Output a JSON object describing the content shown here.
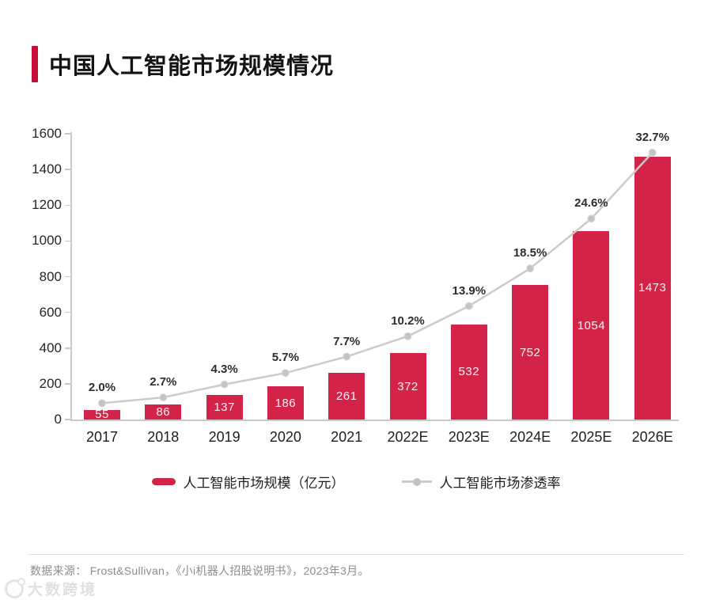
{
  "colors": {
    "accent": "#c60d38",
    "bar": "#d42349",
    "line": "#cbcbcb",
    "marker": "#c4c4c4",
    "marker_edge": "#d9d9d9"
  },
  "chart_data": {
    "type": "bar+line",
    "title": "中国人工智能市场规模情况",
    "categories": [
      "2017",
      "2018",
      "2019",
      "2020",
      "2021",
      "2022E",
      "2023E",
      "2024E",
      "2025E",
      "2026E"
    ],
    "series": [
      {
        "name": "人工智能市场规模（亿元）",
        "type": "bar",
        "values": [
          55,
          86,
          137,
          186,
          261,
          372,
          532,
          752,
          1054,
          1473
        ]
      },
      {
        "name": "人工智能市场渗透率",
        "type": "line",
        "values": [
          2.0,
          2.7,
          4.3,
          5.7,
          7.7,
          10.2,
          13.9,
          18.5,
          24.6,
          32.7
        ],
        "labels": [
          "2.0%",
          "2.7%",
          "4.3%",
          "5.7%",
          "7.7%",
          "10.2%",
          "13.9%",
          "18.5%",
          "24.6%",
          "32.7%"
        ]
      }
    ],
    "ylim": [
      0,
      1600
    ],
    "yticks": [
      0,
      200,
      400,
      600,
      800,
      1000,
      1200,
      1400,
      1600
    ],
    "penetration_axis_max": 35,
    "grid": false,
    "legend_position": "bottom"
  },
  "footer": {
    "source": "数据来源： Frost&Sullivan，《小i机器人招股说明书》，2023年3月。",
    "watermark": "大数跨境"
  }
}
